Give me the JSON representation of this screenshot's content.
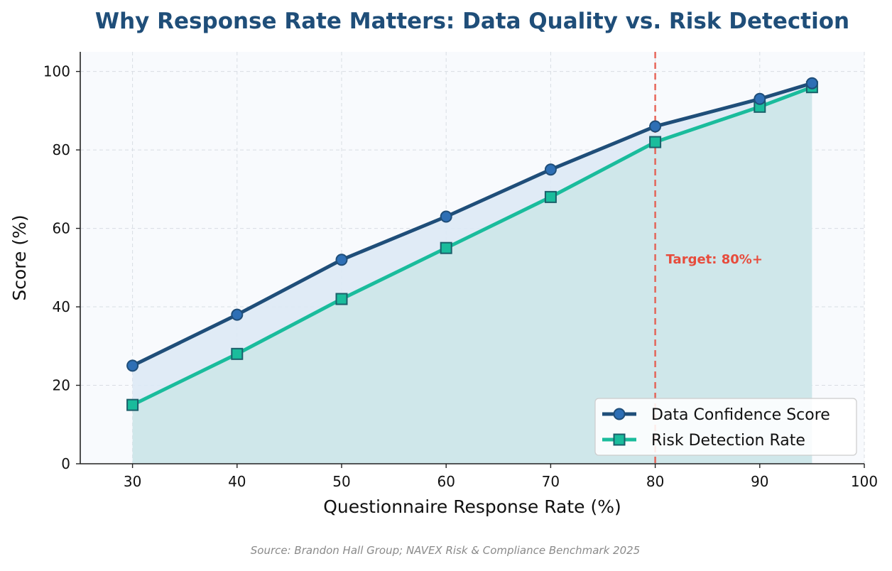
{
  "chart_data": {
    "type": "line",
    "title": "Why Response Rate Matters: Data Quality vs. Risk Detection",
    "xlabel": "Questionnaire Response Rate (%)",
    "ylabel": "Score (%)",
    "xlim": [
      25,
      100
    ],
    "ylim": [
      0,
      105
    ],
    "x_ticks": [
      30,
      40,
      50,
      60,
      70,
      80,
      90,
      100
    ],
    "y_ticks": [
      0,
      20,
      40,
      60,
      80,
      100
    ],
    "grid": true,
    "legend_position": "bottom-right",
    "x": [
      30,
      40,
      50,
      60,
      70,
      80,
      90,
      95
    ],
    "series": [
      {
        "name": "Data Confidence Score",
        "marker": "circle",
        "color": "#1f4e79",
        "marker_fill": "#2e6fb5",
        "values": [
          25,
          38,
          52,
          63,
          75,
          86,
          93,
          97
        ]
      },
      {
        "name": "Risk Detection Rate",
        "marker": "square",
        "color": "#1abc9c",
        "marker_fill": "#1abc9c",
        "values": [
          15,
          28,
          42,
          55,
          68,
          82,
          91,
          96
        ]
      }
    ],
    "threshold": {
      "x": 80,
      "label": "Target: 80%+",
      "color": "#e74c3c"
    },
    "source": "Source: Brandon Hall Group; NAVEX Risk & Compliance Benchmark 2025",
    "colors": {
      "title": "#1f4e79",
      "plot_background": "#f8fafd",
      "fill_between": "#dde9f5",
      "fill_under": "#cfe7ea",
      "source_text": "#8a8a8a"
    }
  }
}
